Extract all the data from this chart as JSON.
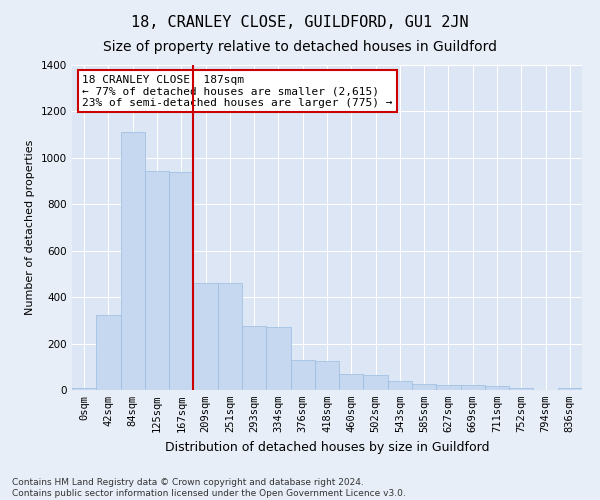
{
  "title": "18, CRANLEY CLOSE, GUILDFORD, GU1 2JN",
  "subtitle": "Size of property relative to detached houses in Guildford",
  "xlabel": "Distribution of detached houses by size in Guildford",
  "ylabel": "Number of detached properties",
  "footer_line1": "Contains HM Land Registry data © Crown copyright and database right 2024.",
  "footer_line2": "Contains public sector information licensed under the Open Government Licence v3.0.",
  "bar_labels": [
    "0sqm",
    "42sqm",
    "84sqm",
    "125sqm",
    "167sqm",
    "209sqm",
    "251sqm",
    "293sqm",
    "334sqm",
    "376sqm",
    "418sqm",
    "460sqm",
    "502sqm",
    "543sqm",
    "585sqm",
    "627sqm",
    "669sqm",
    "711sqm",
    "752sqm",
    "794sqm",
    "836sqm"
  ],
  "bar_values": [
    8,
    325,
    1110,
    945,
    940,
    460,
    460,
    275,
    270,
    128,
    125,
    68,
    65,
    38,
    25,
    22,
    20,
    18,
    8,
    0,
    8
  ],
  "bar_color": "#c5d8f0",
  "bar_edge_color": "#9bbce0",
  "vline_color": "#cc0000",
  "annotation_text": "18 CRANLEY CLOSE: 187sqm\n← 77% of detached houses are smaller (2,615)\n23% of semi-detached houses are larger (775) →",
  "annotation_box_color": "#ffffff",
  "annotation_box_edge": "#cc0000",
  "ylim": [
    0,
    1400
  ],
  "yticks": [
    0,
    200,
    400,
    600,
    800,
    1000,
    1200,
    1400
  ],
  "title_fontsize": 11,
  "subtitle_fontsize": 10,
  "annotation_fontsize": 8,
  "ylabel_fontsize": 8,
  "xlabel_fontsize": 9,
  "tick_fontsize": 7.5,
  "footer_fontsize": 6.5,
  "bg_color": "#e8eef8",
  "plot_bg_color": "#dce6f4",
  "grid_color": "#ffffff",
  "title_color": "#000000",
  "text_color": "#333333"
}
